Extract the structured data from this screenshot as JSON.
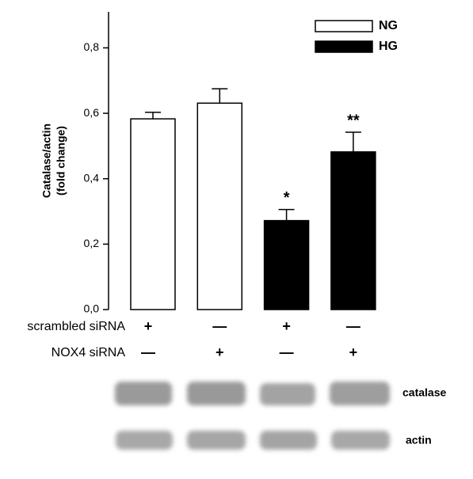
{
  "chart_data": {
    "type": "bar",
    "ylabel": [
      "Catalase/actin",
      "(fold change)"
    ],
    "ylim": [
      0,
      0.91
    ],
    "yticks": [
      {
        "value": 0,
        "label": "0,0"
      },
      {
        "value": 0.2,
        "label": "0,2"
      },
      {
        "value": 0.4,
        "label": "0,4"
      },
      {
        "value": 0.6,
        "label": "0,6"
      },
      {
        "value": 0.8,
        "label": "0,8"
      }
    ],
    "series": [
      {
        "name": "NG",
        "color": "#ffffff",
        "values": [
          0.583,
          0.631,
          null,
          null
        ],
        "errors": [
          0.02,
          0.044,
          null,
          null
        ]
      },
      {
        "name": "HG",
        "color": "#000000",
        "values": [
          null,
          null,
          0.272,
          0.482
        ],
        "errors": [
          null,
          null,
          0.034,
          0.06
        ]
      }
    ],
    "annotations": [
      null,
      null,
      "*",
      "**"
    ],
    "conditions": [
      {
        "label": "scrambled siRNA",
        "signs": [
          "+",
          "—",
          "+",
          "—"
        ]
      },
      {
        "label": "NOX4 siRNA",
        "signs": [
          "—",
          "+",
          "—",
          "+"
        ]
      }
    ],
    "blot_labels": [
      "catalase",
      "actin"
    ]
  }
}
